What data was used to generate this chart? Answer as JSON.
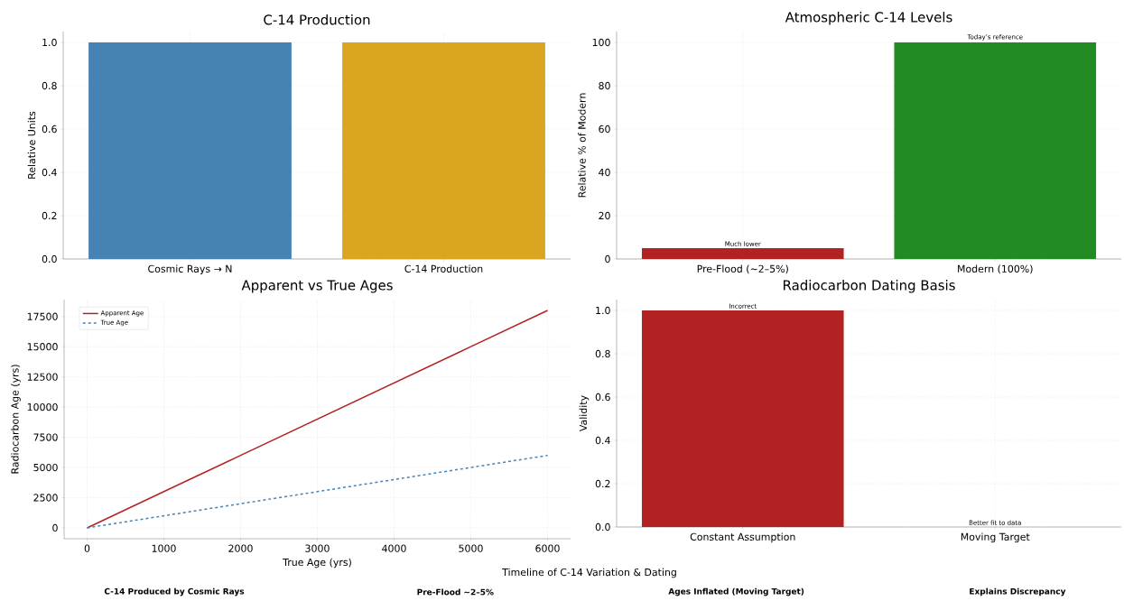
{
  "chart_data": [
    {
      "type": "bar",
      "title": "C-14 Production",
      "ylabel": "Relative Units",
      "categories": [
        "Cosmic Rays → N",
        "C-14 Production"
      ],
      "values": [
        1.0,
        1.0
      ],
      "colors": [
        "#4682b4",
        "#daa520"
      ],
      "ylim": [
        0,
        1.05
      ],
      "yticks": [
        {
          "value": 0,
          "label": "0.0"
        },
        {
          "value": 0.2,
          "label": "0.2"
        },
        {
          "value": 0.4,
          "label": "0.4"
        },
        {
          "value": 0.6,
          "label": "0.6"
        },
        {
          "value": 0.8,
          "label": "0.8"
        },
        {
          "value": 1.0,
          "label": "1.0"
        }
      ],
      "grid": true
    },
    {
      "type": "bar",
      "title": "Atmospheric C-14 Levels",
      "ylabel": "Relative % of Modern",
      "categories": [
        "Pre-Flood (~2–5%)",
        "Modern (100%)"
      ],
      "values": [
        5,
        100
      ],
      "colors": [
        "#b22222",
        "#228b22"
      ],
      "ylim": [
        0,
        105
      ],
      "yticks": [
        0,
        20,
        40,
        60,
        80,
        100
      ],
      "grid": true,
      "annotations": [
        {
          "text": "Much lower",
          "x": "Pre-Flood (~2–5%)",
          "y": 5
        },
        {
          "text": "Today’s reference",
          "x": "Modern (100%)",
          "y": 100
        }
      ]
    },
    {
      "type": "line",
      "title": "Apparent vs True Ages",
      "xlabel": "True Age (yrs)",
      "ylabel": "Radiocarbon Age (yrs)",
      "x": [
        0,
        1000,
        2000,
        3000,
        4000,
        5000,
        6000
      ],
      "series": [
        {
          "name": "Apparent Age",
          "color": "#b22222",
          "line_style": "solid",
          "values": [
            0,
            3000,
            6000,
            9000,
            12000,
            15000,
            18000
          ]
        },
        {
          "name": "True Age",
          "color": "#4682b4",
          "line_style": "dashed",
          "values": [
            0,
            1000,
            2000,
            3000,
            4000,
            5000,
            6000
          ]
        }
      ],
      "xlim": [
        -300,
        6300
      ],
      "ylim": [
        -900,
        18900
      ],
      "xticks": [
        0,
        1000,
        2000,
        3000,
        4000,
        5000,
        6000
      ],
      "yticks": [
        0,
        2500,
        5000,
        7500,
        10000,
        12500,
        15000,
        17500
      ],
      "grid": true,
      "legend": "top left",
      "marker": "none"
    },
    {
      "type": "bar",
      "title": "Radiocarbon Dating Basis",
      "ylabel": "Validity",
      "categories": [
        "Constant Assumption",
        "Moving Target"
      ],
      "values": [
        1.0,
        0
      ],
      "colors": [
        "#b22222",
        "#228b22"
      ],
      "ylim": [
        0,
        1.05
      ],
      "yticks": [
        {
          "value": 0,
          "label": "0.0"
        },
        {
          "value": 0.2,
          "label": "0.2"
        },
        {
          "value": 0.4,
          "label": "0.4"
        },
        {
          "value": 0.6,
          "label": "0.6"
        },
        {
          "value": 0.8,
          "label": "0.8"
        },
        {
          "value": 1.0,
          "label": "1.0"
        }
      ],
      "grid": true,
      "annotations": [
        {
          "text": "Incorrect",
          "x": "Constant Assumption",
          "y": 1.0
        },
        {
          "text": "Better fit to data",
          "x": "Moving Target",
          "y": 0
        }
      ]
    },
    {
      "type": "other",
      "title": "Timeline of C-14 Variation & Dating",
      "annotations": [
        "C-14 Produced by Cosmic Rays",
        "Pre-Flood ~2–5%",
        "Ages Inflated (Moving Target)",
        "Explains Discrepancy"
      ]
    }
  ]
}
